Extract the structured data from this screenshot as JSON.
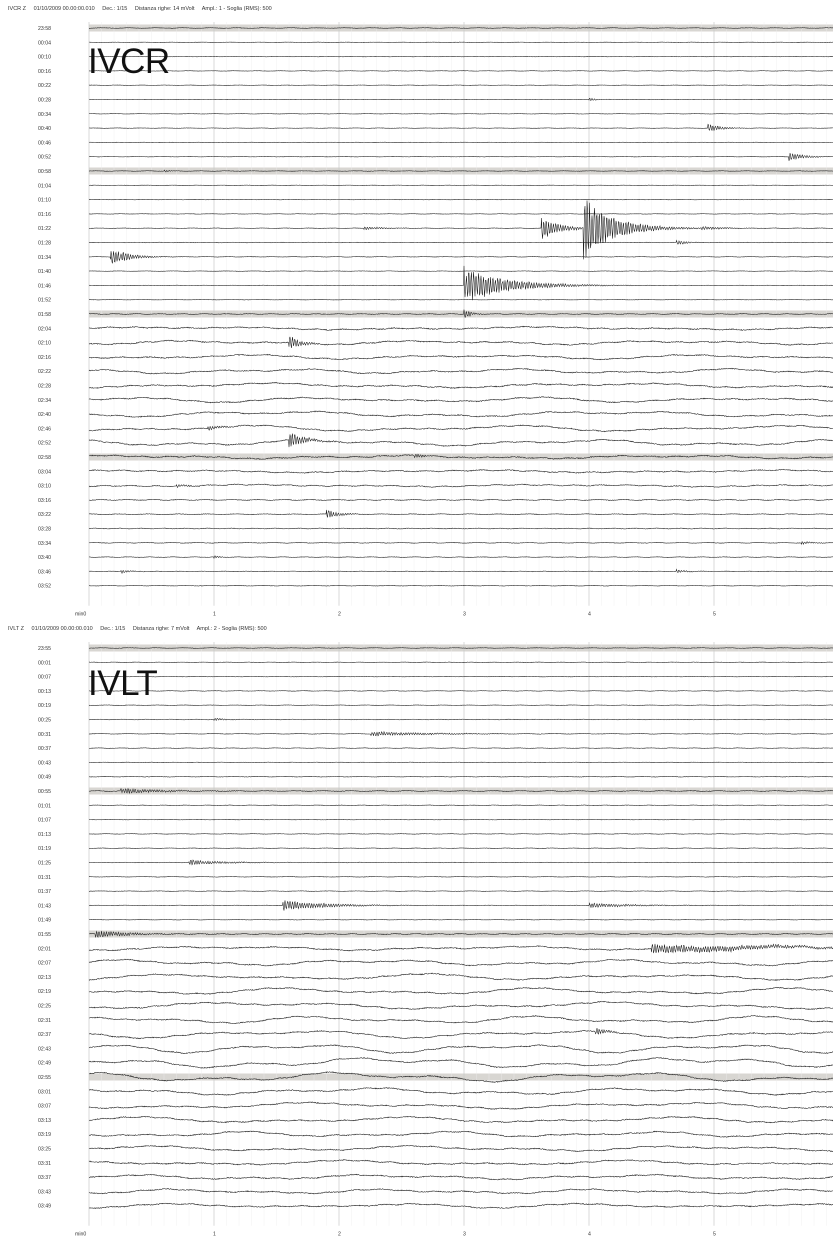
{
  "panels": [
    {
      "header": {
        "channel": "IVCR  Z",
        "datetime": "01/10/2009  00.00:00.010",
        "decimation": "Dec.: 1/15",
        "row_spacing": "Distanza righe: 14 mVolt",
        "amplitude": "Ampl.: 1 - Soglia (RMS): 500"
      },
      "station": "IVCR",
      "row_labels": [
        "23:58",
        "00:04",
        "00:10",
        "00:16",
        "00:22",
        "00:28",
        "00:34",
        "00:40",
        "00:46",
        "00:52",
        "00:58",
        "01:04",
        "01:10",
        "01:16",
        "01:22",
        "01:28",
        "01:34",
        "01:40",
        "01:46",
        "01:52",
        "01:58",
        "02:04",
        "02:10",
        "02:16",
        "02:22",
        "02:28",
        "02:34",
        "02:40",
        "02:46",
        "02:52",
        "02:58",
        "03:04",
        "03:10",
        "03:16",
        "03:22",
        "03:28",
        "03:34",
        "03:40",
        "03:46",
        "03:52"
      ],
      "x_ticks": [
        "min0",
        "1",
        "2",
        "3",
        "4",
        "5"
      ],
      "highlight_rows": [
        0,
        10,
        20,
        30
      ],
      "row_noise": [
        0.6,
        0.4,
        0.4,
        0.4,
        0.4,
        0.4,
        0.4,
        0.4,
        0.4,
        0.4,
        0.5,
        0.4,
        0.4,
        0.4,
        0.5,
        0.5,
        0.5,
        0.4,
        0.4,
        0.4,
        0.8,
        1.6,
        2.2,
        2.5,
        2.6,
        2.6,
        2.8,
        3.2,
        3.4,
        3.4,
        1.8,
        1.4,
        1.2,
        1.0,
        0.8,
        0.8,
        0.7,
        0.6,
        0.6,
        0.6
      ],
      "events": [
        {
          "row": 5,
          "minute": 4.0,
          "amp": 2,
          "dur": 0.05
        },
        {
          "row": 7,
          "minute": 4.95,
          "amp": 5,
          "dur": 0.1
        },
        {
          "row": 9,
          "minute": 5.6,
          "amp": 5,
          "dur": 0.12
        },
        {
          "row": 10,
          "minute": 0.6,
          "amp": 1.5,
          "dur": 0.05
        },
        {
          "row": 14,
          "minute": 2.2,
          "amp": 2,
          "dur": 0.15
        },
        {
          "row": 14,
          "minute": 3.62,
          "amp": 12,
          "dur": 0.15
        },
        {
          "row": 14,
          "minute": 3.95,
          "amp": 35,
          "dur": 0.25
        },
        {
          "row": 14,
          "minute": 4.9,
          "amp": 2,
          "dur": 0.2
        },
        {
          "row": 15,
          "minute": 4.7,
          "amp": 3,
          "dur": 0.08
        },
        {
          "row": 16,
          "minute": 0.17,
          "amp": 10,
          "dur": 0.15
        },
        {
          "row": 18,
          "minute": 3.0,
          "amp": 20,
          "dur": 0.35
        },
        {
          "row": 20,
          "minute": 3.0,
          "amp": 6,
          "dur": 0.05
        },
        {
          "row": 22,
          "minute": 1.6,
          "amp": 7,
          "dur": 0.1
        },
        {
          "row": 28,
          "minute": 0.95,
          "amp": 3,
          "dur": 0.1
        },
        {
          "row": 29,
          "minute": 1.6,
          "amp": 9,
          "dur": 0.12
        },
        {
          "row": 30,
          "minute": 2.6,
          "amp": 3,
          "dur": 0.08
        },
        {
          "row": 32,
          "minute": 0.7,
          "amp": 2,
          "dur": 0.08
        },
        {
          "row": 34,
          "minute": 1.9,
          "amp": 5,
          "dur": 0.1
        },
        {
          "row": 36,
          "minute": 5.7,
          "amp": 2,
          "dur": 0.08
        },
        {
          "row": 37,
          "minute": 1.0,
          "amp": 1.5,
          "dur": 0.05
        },
        {
          "row": 38,
          "minute": 0.25,
          "amp": 2,
          "dur": 0.08
        },
        {
          "row": 38,
          "minute": 4.7,
          "amp": 2,
          "dur": 0.08
        }
      ]
    },
    {
      "header": {
        "channel": "IVLT  Z",
        "datetime": "01/10/2009  00.00:00.010",
        "decimation": "Dec.: 1/15",
        "row_spacing": "Distanza righe: 7 mVolt",
        "amplitude": "Ampl.: 2 - Soglia (RMS): 500"
      },
      "station": "IVLT",
      "row_labels": [
        "23:55",
        "00:01",
        "00:07",
        "00:13",
        "00:19",
        "00:25",
        "00:31",
        "00:37",
        "00:43",
        "00:49",
        "00:55",
        "01:01",
        "01:07",
        "01:13",
        "01:19",
        "01:25",
        "01:31",
        "01:37",
        "01:43",
        "01:49",
        "01:55",
        "02:01",
        "02:07",
        "02:13",
        "02:19",
        "02:25",
        "02:31",
        "02:37",
        "02:43",
        "02:49",
        "02:55",
        "03:01",
        "03:07",
        "03:13",
        "03:19",
        "03:25",
        "03:31",
        "03:37",
        "03:43",
        "03:49"
      ],
      "x_ticks": [
        "min0",
        "1",
        "2",
        "3",
        "4",
        "5"
      ],
      "highlight_rows": [
        0,
        10,
        20,
        30
      ],
      "row_noise": [
        0.6,
        0.5,
        0.5,
        0.5,
        0.5,
        0.6,
        0.6,
        0.5,
        0.5,
        0.6,
        0.9,
        0.6,
        0.5,
        0.5,
        0.5,
        0.5,
        0.5,
        0.5,
        0.5,
        0.5,
        1.0,
        2.2,
        3.2,
        3.4,
        3.6,
        3.8,
        4.0,
        4.4,
        5.0,
        5.6,
        5.2,
        3.8,
        3.5,
        3.3,
        3.0,
        2.9,
        2.7,
        2.6,
        2.5,
        2.4
      ],
      "events": [
        {
          "row": 5,
          "minute": 1.0,
          "amp": 1.5,
          "dur": 0.1
        },
        {
          "row": 6,
          "minute": 2.25,
          "amp": 2.5,
          "dur": 0.5
        },
        {
          "row": 10,
          "minute": 0.25,
          "amp": 3,
          "dur": 0.35
        },
        {
          "row": 15,
          "minute": 0.8,
          "amp": 3,
          "dur": 0.3
        },
        {
          "row": 18,
          "minute": 1.55,
          "amp": 6,
          "dur": 0.35
        },
        {
          "row": 18,
          "minute": 4.0,
          "amp": 2.5,
          "dur": 0.4
        },
        {
          "row": 20,
          "minute": 0.05,
          "amp": 4,
          "dur": 0.3
        },
        {
          "row": 21,
          "minute": 4.5,
          "amp": 5,
          "dur": 1.0
        },
        {
          "row": 27,
          "minute": 4.05,
          "amp": 4,
          "dur": 0.1
        }
      ]
    }
  ]
}
